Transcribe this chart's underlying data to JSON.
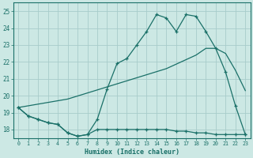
{
  "xlabel": "Humidex (Indice chaleur)",
  "xlim": [
    -0.5,
    23.5
  ],
  "ylim": [
    17.5,
    25.5
  ],
  "yticks": [
    18,
    19,
    20,
    21,
    22,
    23,
    24,
    25
  ],
  "xticks": [
    0,
    1,
    2,
    3,
    4,
    5,
    6,
    7,
    8,
    9,
    10,
    11,
    12,
    13,
    14,
    15,
    16,
    17,
    18,
    19,
    20,
    21,
    22,
    23
  ],
  "bg_color": "#cce8e4",
  "line_color": "#1a7068",
  "grid_color": "#a8ccca",
  "line1_x": [
    0,
    1,
    2,
    3,
    4,
    5,
    6,
    7,
    8,
    9,
    10,
    11,
    12,
    13,
    14,
    15,
    16,
    17,
    18,
    19,
    20,
    21,
    22,
    23
  ],
  "line1_y": [
    19.3,
    18.8,
    18.6,
    18.4,
    18.3,
    17.8,
    17.6,
    17.7,
    18.6,
    20.4,
    21.9,
    22.2,
    23.0,
    23.8,
    24.8,
    24.6,
    23.8,
    24.8,
    24.7,
    23.8,
    22.8,
    21.4,
    19.4,
    17.7
  ],
  "line2_x": [
    0,
    1,
    2,
    3,
    4,
    5,
    6,
    7,
    8,
    9,
    10,
    11,
    12,
    13,
    14,
    15,
    16,
    17,
    18,
    19,
    20,
    21,
    22,
    23
  ],
  "line2_y": [
    19.3,
    18.8,
    18.6,
    18.4,
    18.3,
    17.8,
    17.6,
    17.7,
    18.0,
    18.0,
    18.0,
    18.0,
    18.0,
    18.0,
    18.0,
    18.0,
    17.9,
    17.9,
    17.8,
    17.8,
    17.7,
    17.7,
    17.7,
    17.7
  ],
  "line3_x": [
    0,
    2,
    5,
    10,
    15,
    18,
    19,
    20,
    21,
    22,
    23
  ],
  "line3_y": [
    19.3,
    19.5,
    19.8,
    20.7,
    21.6,
    22.4,
    22.8,
    22.8,
    22.5,
    21.5,
    20.3
  ]
}
